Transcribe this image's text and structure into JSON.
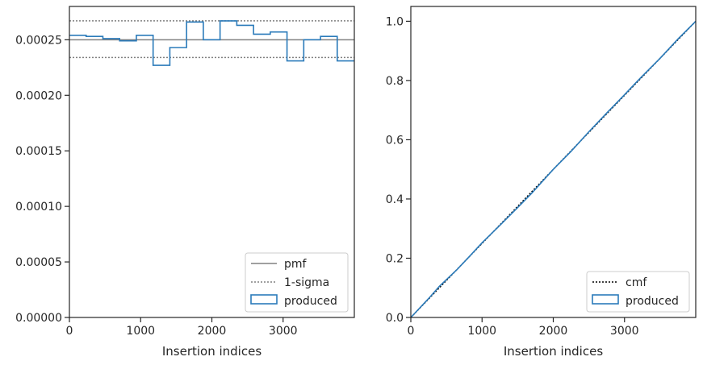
{
  "colors": {
    "produced": "#2b7bba",
    "pmf": "#808080",
    "sigma": "#808080",
    "cmf": "#000000",
    "axes": "#262626"
  },
  "chart_data": [
    {
      "type": "histogram",
      "xlabel": "Insertion indices",
      "ylabel": "",
      "xlim": [
        0,
        4000
      ],
      "ylim": [
        0,
        0.00028
      ],
      "xticks": [
        0,
        1000,
        2000,
        3000
      ],
      "xtick_labels": [
        "0",
        "1000",
        "2000",
        "3000"
      ],
      "yticks": [
        0,
        5e-05,
        0.0001,
        0.00015,
        0.0002,
        0.00025
      ],
      "ytick_labels": [
        "0.00000",
        "0.00005",
        "0.00010",
        "0.00015",
        "0.00020",
        "0.00025"
      ],
      "pmf": 0.00025,
      "sigma_band": [
        0.000234,
        0.000267
      ],
      "histogram": {
        "bin_edges": [
          0,
          235,
          470,
          705,
          940,
          1175,
          1410,
          1645,
          1880,
          2115,
          2350,
          2585,
          2820,
          3055,
          3290,
          3525,
          3760,
          4000
        ],
        "values": [
          0.000254,
          0.000253,
          0.000251,
          0.000249,
          0.000254,
          0.000227,
          0.000243,
          0.000266,
          0.00025,
          0.000267,
          0.000263,
          0.000255,
          0.000257,
          0.000231,
          0.00025,
          0.000253,
          0.000231
        ]
      },
      "legend": {
        "placement": "lower right",
        "entries": [
          "pmf",
          "1-sigma",
          "produced"
        ]
      }
    },
    {
      "type": "line",
      "xlabel": "Insertion indices",
      "ylabel": "",
      "xlim": [
        0,
        4000
      ],
      "ylim": [
        0,
        1.05
      ],
      "xticks": [
        0,
        1000,
        2000,
        3000
      ],
      "xtick_labels": [
        "0",
        "1000",
        "2000",
        "3000"
      ],
      "yticks": [
        0,
        0.2,
        0.4,
        0.6,
        0.8,
        1.0
      ],
      "ytick_labels": [
        "0.0",
        "0.2",
        "0.4",
        "0.6",
        "0.8",
        "1.0"
      ],
      "cmf": {
        "x": [
          0,
          4000
        ],
        "y": [
          0,
          1
        ]
      },
      "produced": {
        "x": [
          0,
          250,
          400,
          650,
          800,
          1000,
          1250,
          1500,
          1700,
          2000,
          2250,
          2500,
          2750,
          3000,
          3150,
          3250,
          3500,
          3750,
          4000
        ],
        "y": [
          0,
          0.064,
          0.105,
          0.162,
          0.2,
          0.252,
          0.311,
          0.371,
          0.42,
          0.5,
          0.561,
          0.627,
          0.69,
          0.752,
          0.79,
          0.815,
          0.875,
          0.94,
          1.0
        ]
      },
      "legend": {
        "placement": "lower right",
        "entries": [
          "cmf",
          "produced"
        ]
      }
    }
  ]
}
